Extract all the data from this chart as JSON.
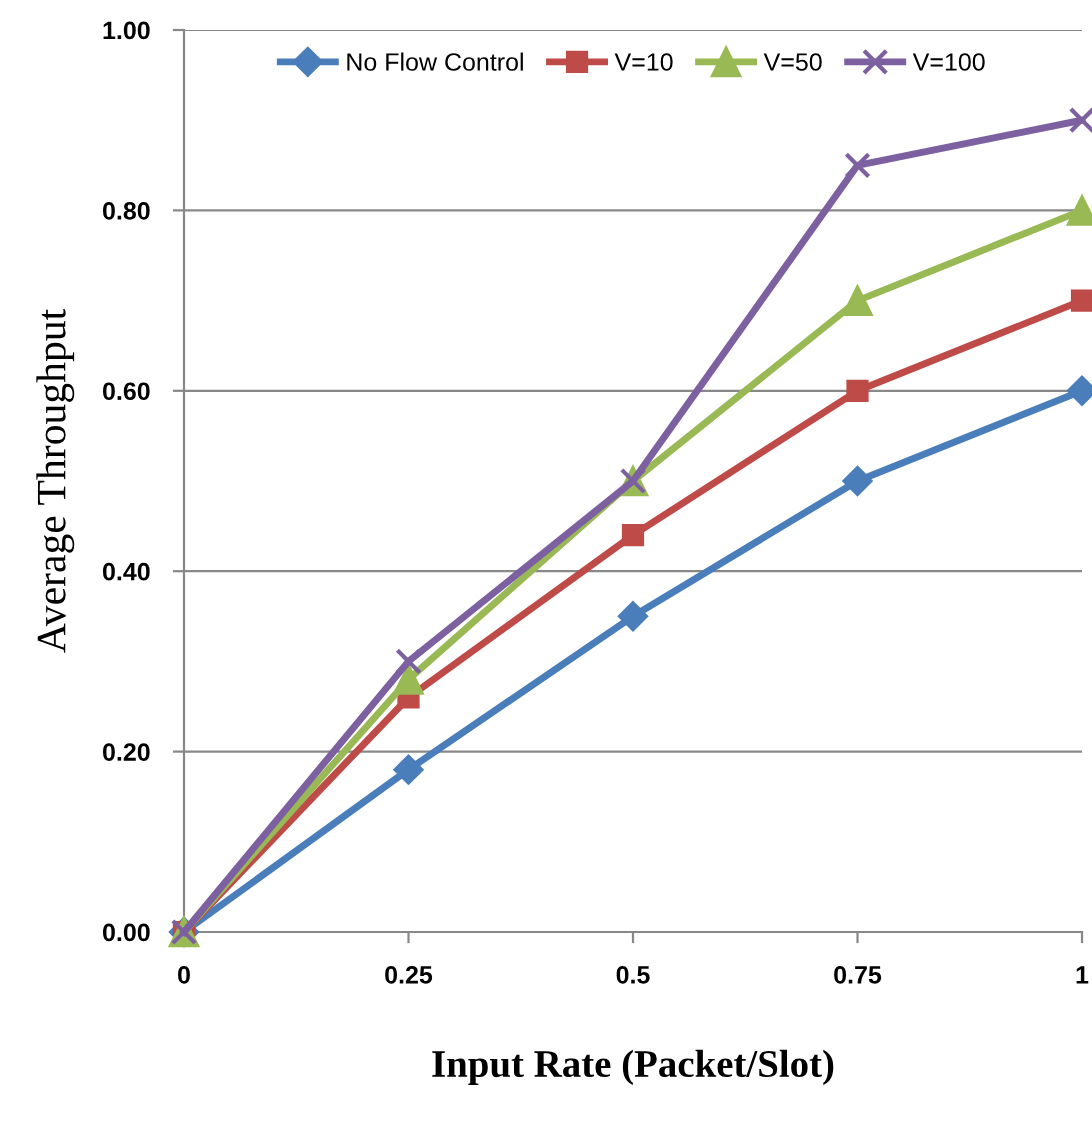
{
  "chart_data": {
    "type": "line",
    "xlabel": "Input Rate (Packet/Slot)",
    "ylabel": "Average Throughput",
    "categories": [
      "0",
      "0.25",
      "0.5",
      "0.75",
      "1"
    ],
    "series": [
      {
        "name": "No Flow Control",
        "color": "#4a7ebb",
        "marker": "diamond",
        "values": [
          0,
          0.18,
          0.35,
          0.5,
          0.6
        ]
      },
      {
        "name": "V=10",
        "color": "#be4b48",
        "marker": "square",
        "values": [
          0,
          0.26,
          0.44,
          0.6,
          0.7
        ]
      },
      {
        "name": "V=50",
        "color": "#98b954",
        "marker": "triangle",
        "values": [
          0,
          0.28,
          0.5,
          0.7,
          0.8
        ]
      },
      {
        "name": "V=100",
        "color": "#7d60a0",
        "marker": "cross",
        "values": [
          0,
          0.3,
          0.5,
          0.85,
          0.9
        ]
      }
    ],
    "ylim": [
      0,
      1
    ],
    "yticks": [
      {
        "value": 0,
        "label": "0.00"
      },
      {
        "value": 0.2,
        "label": "0.20"
      },
      {
        "value": 0.4,
        "label": "0.40"
      },
      {
        "value": 0.6,
        "label": "0.60"
      },
      {
        "value": 0.8,
        "label": "0.80"
      },
      {
        "value": 1,
        "label": "1.00"
      }
    ],
    "grid": "y",
    "legend": "top",
    "line_style": "solid"
  }
}
